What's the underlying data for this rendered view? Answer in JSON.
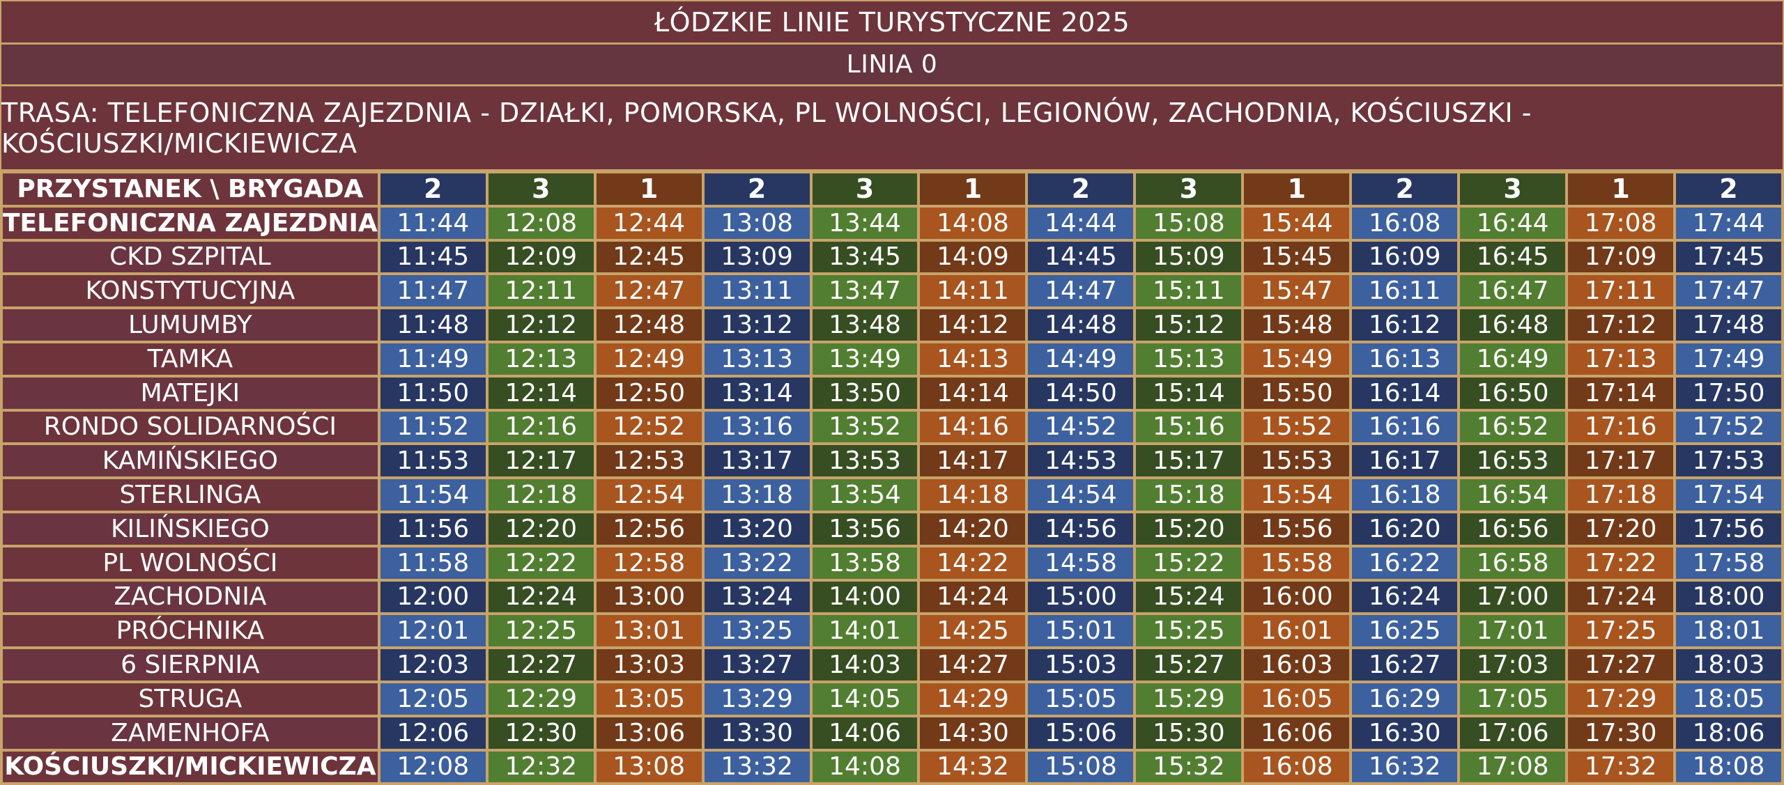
{
  "title": "ŁÓDZKIE LINIE TURYSTYCZNE 2025",
  "line": "LINIA 0",
  "route": "TRASA: TELEFONICZNA ZAJEZDNIA - DZIAŁKI, POMORSKA, PL WOLNOŚCI, LEGIONÓW, ZACHODNIA, KOŚCIUSZKI - KOŚCIUSZKI/MICKIEWICZA",
  "colors": {
    "brygada_1": "#a9551f",
    "brygada_2": "#3d609f",
    "brygada_3": "#527e31",
    "header_bg": "#6e343b",
    "grid": "#c8a36a"
  },
  "table": {
    "corner_label": "PRZYSTANEK \\ BRYGADA",
    "brygady": [
      "2",
      "3",
      "1",
      "2",
      "3",
      "1",
      "2",
      "3",
      "1",
      "2",
      "3",
      "1",
      "2"
    ],
    "rows": [
      {
        "stop": "TELEFONICZNA ZAJEZDNIA",
        "times": [
          "11:44",
          "12:08",
          "12:44",
          "13:08",
          "13:44",
          "14:08",
          "14:44",
          "15:08",
          "15:44",
          "16:08",
          "16:44",
          "17:08",
          "17:44"
        ]
      },
      {
        "stop": "CKD SZPITAL",
        "times": [
          "11:45",
          "12:09",
          "12:45",
          "13:09",
          "13:45",
          "14:09",
          "14:45",
          "15:09",
          "15:45",
          "16:09",
          "16:45",
          "17:09",
          "17:45"
        ]
      },
      {
        "stop": "KONSTYTUCYJNA",
        "times": [
          "11:47",
          "12:11",
          "12:47",
          "13:11",
          "13:47",
          "14:11",
          "14:47",
          "15:11",
          "15:47",
          "16:11",
          "16:47",
          "17:11",
          "17:47"
        ]
      },
      {
        "stop": "LUMUMBY",
        "times": [
          "11:48",
          "12:12",
          "12:48",
          "13:12",
          "13:48",
          "14:12",
          "14:48",
          "15:12",
          "15:48",
          "16:12",
          "16:48",
          "17:12",
          "17:48"
        ]
      },
      {
        "stop": "TAMKA",
        "times": [
          "11:49",
          "12:13",
          "12:49",
          "13:13",
          "13:49",
          "14:13",
          "14:49",
          "15:13",
          "15:49",
          "16:13",
          "16:49",
          "17:13",
          "17:49"
        ]
      },
      {
        "stop": "MATEJKI",
        "times": [
          "11:50",
          "12:14",
          "12:50",
          "13:14",
          "13:50",
          "14:14",
          "14:50",
          "15:14",
          "15:50",
          "16:14",
          "16:50",
          "17:14",
          "17:50"
        ]
      },
      {
        "stop": "RONDO SOLIDARNOŚCI",
        "times": [
          "11:52",
          "12:16",
          "12:52",
          "13:16",
          "13:52",
          "14:16",
          "14:52",
          "15:16",
          "15:52",
          "16:16",
          "16:52",
          "17:16",
          "17:52"
        ]
      },
      {
        "stop": "KAMIŃSKIEGO",
        "times": [
          "11:53",
          "12:17",
          "12:53",
          "13:17",
          "13:53",
          "14:17",
          "14:53",
          "15:17",
          "15:53",
          "16:17",
          "16:53",
          "17:17",
          "17:53"
        ]
      },
      {
        "stop": "STERLINGA",
        "times": [
          "11:54",
          "12:18",
          "12:54",
          "13:18",
          "13:54",
          "14:18",
          "14:54",
          "15:18",
          "15:54",
          "16:18",
          "16:54",
          "17:18",
          "17:54"
        ]
      },
      {
        "stop": "KILIŃSKIEGO",
        "times": [
          "11:56",
          "12:20",
          "12:56",
          "13:20",
          "13:56",
          "14:20",
          "14:56",
          "15:20",
          "15:56",
          "16:20",
          "16:56",
          "17:20",
          "17:56"
        ]
      },
      {
        "stop": "PL WOLNOŚCI",
        "times": [
          "11:58",
          "12:22",
          "12:58",
          "13:22",
          "13:58",
          "14:22",
          "14:58",
          "15:22",
          "15:58",
          "16:22",
          "16:58",
          "17:22",
          "17:58"
        ]
      },
      {
        "stop": "ZACHODNIA",
        "times": [
          "12:00",
          "12:24",
          "13:00",
          "13:24",
          "14:00",
          "14:24",
          "15:00",
          "15:24",
          "16:00",
          "16:24",
          "17:00",
          "17:24",
          "18:00"
        ]
      },
      {
        "stop": "PRÓCHNIKA",
        "times": [
          "12:01",
          "12:25",
          "13:01",
          "13:25",
          "14:01",
          "14:25",
          "15:01",
          "15:25",
          "16:01",
          "16:25",
          "17:01",
          "17:25",
          "18:01"
        ]
      },
      {
        "stop": "6 SIERPNIA",
        "times": [
          "12:03",
          "12:27",
          "13:03",
          "13:27",
          "14:03",
          "14:27",
          "15:03",
          "15:27",
          "16:03",
          "16:27",
          "17:03",
          "17:27",
          "18:03"
        ]
      },
      {
        "stop": "STRUGA",
        "times": [
          "12:05",
          "12:29",
          "13:05",
          "13:29",
          "14:05",
          "14:29",
          "15:05",
          "15:29",
          "16:05",
          "16:29",
          "17:05",
          "17:29",
          "18:05"
        ]
      },
      {
        "stop": "ZAMENHOFA",
        "times": [
          "12:06",
          "12:30",
          "13:06",
          "13:30",
          "14:06",
          "14:30",
          "15:06",
          "15:30",
          "16:06",
          "16:30",
          "17:06",
          "17:30",
          "18:06"
        ]
      },
      {
        "stop": "KOŚCIUSZKI/MICKIEWICZA",
        "times": [
          "12:08",
          "12:32",
          "13:08",
          "13:32",
          "14:08",
          "14:32",
          "15:08",
          "15:32",
          "16:08",
          "16:32",
          "17:08",
          "17:32",
          "18:08"
        ]
      }
    ]
  }
}
